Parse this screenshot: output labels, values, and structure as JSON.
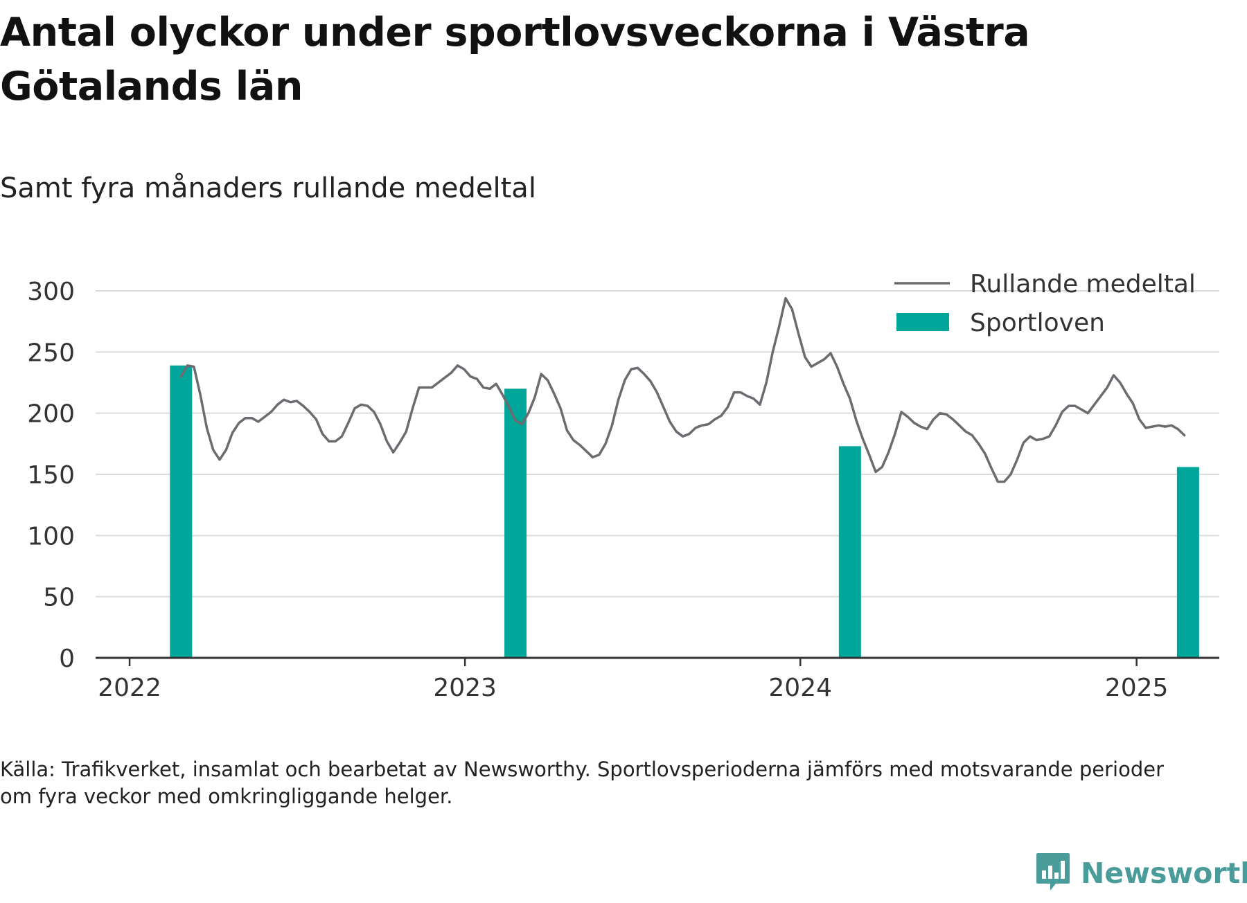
{
  "title": "Antal olyckor under sportlovsveckorna i Västra Götalands län",
  "subtitle": "Samt fyra månaders rullande medeltal",
  "source": "Källa: Trafikverket, insamlat och bearbetat av Newsworthy. Sportlovsperioderna jämförs med motsvarande perioder om fyra veckor med omkringliggande helger.",
  "brand": {
    "name": "Newsworthy",
    "logo_icon": "newsworthy-chart-logo-icon"
  },
  "colors": {
    "line": "#6b6b70",
    "bar": "#00a699",
    "grid": "#dcdcdc",
    "axis": "#333333",
    "brand": "#4a9c9a"
  },
  "chart_data": {
    "type": "bar",
    "title": "Antal olyckor under sportlovsveckorna i Västra Götalands län",
    "subtitle": "Samt fyra månaders rullande medeltal",
    "xlabel": "",
    "ylabel": "",
    "ylim": [
      0,
      300
    ],
    "yticks": [
      "0",
      "50",
      "100",
      "150",
      "200",
      "250",
      "300"
    ],
    "xticks": [
      "2022",
      "2023",
      "2024",
      "2025"
    ],
    "xlim": [
      "2021-11-25",
      "2025-04-01"
    ],
    "grid": true,
    "legend": {
      "position": "top-right",
      "entries": [
        "Rullande medeltal",
        "Sportloven"
      ]
    },
    "series": [
      {
        "name": "Sportloven",
        "type": "bar",
        "points": [
          {
            "x": "2022-02-26",
            "y": 239
          },
          {
            "x": "2023-02-25",
            "y": 220
          },
          {
            "x": "2024-02-24",
            "y": 173
          },
          {
            "x": "2025-02-26",
            "y": 156
          }
        ]
      },
      {
        "name": "Rullande medeltal",
        "type": "line",
        "points": [
          [
            "2022-02-26",
            230
          ],
          [
            "2022-03-05",
            239
          ],
          [
            "2022-03-12",
            238
          ],
          [
            "2022-03-19",
            215
          ],
          [
            "2022-03-26",
            188
          ],
          [
            "2022-04-02",
            170
          ],
          [
            "2022-04-09",
            162
          ],
          [
            "2022-04-16",
            170
          ],
          [
            "2022-04-23",
            184
          ],
          [
            "2022-04-30",
            192
          ],
          [
            "2022-05-07",
            196
          ],
          [
            "2022-05-14",
            196
          ],
          [
            "2022-05-21",
            193
          ],
          [
            "2022-05-28",
            197
          ],
          [
            "2022-06-04",
            201
          ],
          [
            "2022-06-11",
            207
          ],
          [
            "2022-06-18",
            211
          ],
          [
            "2022-06-25",
            209
          ],
          [
            "2022-07-02",
            210
          ],
          [
            "2022-07-09",
            206
          ],
          [
            "2022-07-16",
            201
          ],
          [
            "2022-07-23",
            195
          ],
          [
            "2022-07-30",
            183
          ],
          [
            "2022-08-06",
            177
          ],
          [
            "2022-08-13",
            177
          ],
          [
            "2022-08-20",
            181
          ],
          [
            "2022-08-27",
            192
          ],
          [
            "2022-09-03",
            204
          ],
          [
            "2022-09-10",
            207
          ],
          [
            "2022-09-17",
            206
          ],
          [
            "2022-09-24",
            201
          ],
          [
            "2022-10-01",
            191
          ],
          [
            "2022-10-08",
            177
          ],
          [
            "2022-10-15",
            168
          ],
          [
            "2022-10-22",
            176
          ],
          [
            "2022-10-29",
            185
          ],
          [
            "2022-11-05",
            204
          ],
          [
            "2022-11-12",
            221
          ],
          [
            "2022-11-19",
            221
          ],
          [
            "2022-11-26",
            221
          ],
          [
            "2022-12-03",
            225
          ],
          [
            "2022-12-10",
            229
          ],
          [
            "2022-12-17",
            233
          ],
          [
            "2022-12-24",
            239
          ],
          [
            "2022-12-31",
            236
          ],
          [
            "2023-01-07",
            230
          ],
          [
            "2023-01-14",
            228
          ],
          [
            "2023-01-21",
            221
          ],
          [
            "2023-01-28",
            220
          ],
          [
            "2023-02-04",
            224
          ],
          [
            "2023-02-11",
            215
          ],
          [
            "2023-02-18",
            205
          ],
          [
            "2023-02-25",
            194
          ],
          [
            "2023-03-04",
            191
          ],
          [
            "2023-03-11",
            200
          ],
          [
            "2023-03-18",
            213
          ],
          [
            "2023-03-25",
            232
          ],
          [
            "2023-04-01",
            227
          ],
          [
            "2023-04-08",
            216
          ],
          [
            "2023-04-15",
            204
          ],
          [
            "2023-04-22",
            186
          ],
          [
            "2023-04-29",
            178
          ],
          [
            "2023-05-06",
            174
          ],
          [
            "2023-05-13",
            169
          ],
          [
            "2023-05-20",
            164
          ],
          [
            "2023-05-27",
            166
          ],
          [
            "2023-06-03",
            175
          ],
          [
            "2023-06-10",
            190
          ],
          [
            "2023-06-17",
            211
          ],
          [
            "2023-06-24",
            227
          ],
          [
            "2023-07-01",
            236
          ],
          [
            "2023-07-08",
            237
          ],
          [
            "2023-07-15",
            232
          ],
          [
            "2023-07-22",
            226
          ],
          [
            "2023-07-29",
            217
          ],
          [
            "2023-08-05",
            205
          ],
          [
            "2023-08-12",
            193
          ],
          [
            "2023-08-19",
            185
          ],
          [
            "2023-08-26",
            181
          ],
          [
            "2023-09-02",
            183
          ],
          [
            "2023-09-09",
            188
          ],
          [
            "2023-09-16",
            190
          ],
          [
            "2023-09-23",
            191
          ],
          [
            "2023-09-30",
            195
          ],
          [
            "2023-10-07",
            198
          ],
          [
            "2023-10-14",
            205
          ],
          [
            "2023-10-21",
            217
          ],
          [
            "2023-10-28",
            217
          ],
          [
            "2023-11-04",
            214
          ],
          [
            "2023-11-11",
            212
          ],
          [
            "2023-11-18",
            207
          ],
          [
            "2023-11-25",
            225
          ],
          [
            "2023-12-02",
            250
          ],
          [
            "2023-12-09",
            271
          ],
          [
            "2023-12-16",
            294
          ],
          [
            "2023-12-23",
            285
          ],
          [
            "2023-12-30",
            265
          ],
          [
            "2024-01-06",
            246
          ],
          [
            "2024-01-13",
            238
          ],
          [
            "2024-01-20",
            241
          ],
          [
            "2024-01-27",
            244
          ],
          [
            "2024-02-03",
            249
          ],
          [
            "2024-02-10",
            238
          ],
          [
            "2024-02-17",
            224
          ],
          [
            "2024-02-24",
            212
          ],
          [
            "2024-03-02",
            194
          ],
          [
            "2024-03-09",
            179
          ],
          [
            "2024-03-16",
            166
          ],
          [
            "2024-03-23",
            152
          ],
          [
            "2024-03-30",
            156
          ],
          [
            "2024-04-06",
            168
          ],
          [
            "2024-04-13",
            183
          ],
          [
            "2024-04-20",
            201
          ],
          [
            "2024-04-27",
            197
          ],
          [
            "2024-05-04",
            192
          ],
          [
            "2024-05-11",
            189
          ],
          [
            "2024-05-18",
            187
          ],
          [
            "2024-05-25",
            195
          ],
          [
            "2024-06-01",
            200
          ],
          [
            "2024-06-08",
            199
          ],
          [
            "2024-06-15",
            195
          ],
          [
            "2024-06-22",
            190
          ],
          [
            "2024-06-29",
            185
          ],
          [
            "2024-07-06",
            182
          ],
          [
            "2024-07-13",
            175
          ],
          [
            "2024-07-20",
            167
          ],
          [
            "2024-07-27",
            155
          ],
          [
            "2024-08-03",
            144
          ],
          [
            "2024-08-10",
            144
          ],
          [
            "2024-08-17",
            150
          ],
          [
            "2024-08-24",
            162
          ],
          [
            "2024-08-31",
            176
          ],
          [
            "2024-09-07",
            181
          ],
          [
            "2024-09-14",
            178
          ],
          [
            "2024-09-21",
            179
          ],
          [
            "2024-09-28",
            181
          ],
          [
            "2024-10-05",
            190
          ],
          [
            "2024-10-12",
            201
          ],
          [
            "2024-10-19",
            206
          ],
          [
            "2024-10-26",
            206
          ],
          [
            "2024-11-02",
            203
          ],
          [
            "2024-11-09",
            200
          ],
          [
            "2024-11-16",
            207
          ],
          [
            "2024-11-23",
            214
          ],
          [
            "2024-11-30",
            221
          ],
          [
            "2024-12-07",
            231
          ],
          [
            "2024-12-14",
            225
          ],
          [
            "2024-12-21",
            216
          ],
          [
            "2024-12-28",
            208
          ],
          [
            "2025-01-04",
            195
          ],
          [
            "2025-01-11",
            188
          ],
          [
            "2025-01-18",
            189
          ],
          [
            "2025-01-25",
            190
          ],
          [
            "2025-02-01",
            189
          ],
          [
            "2025-02-08",
            190
          ],
          [
            "2025-02-15",
            187
          ],
          [
            "2025-02-22",
            182
          ]
        ]
      }
    ]
  }
}
